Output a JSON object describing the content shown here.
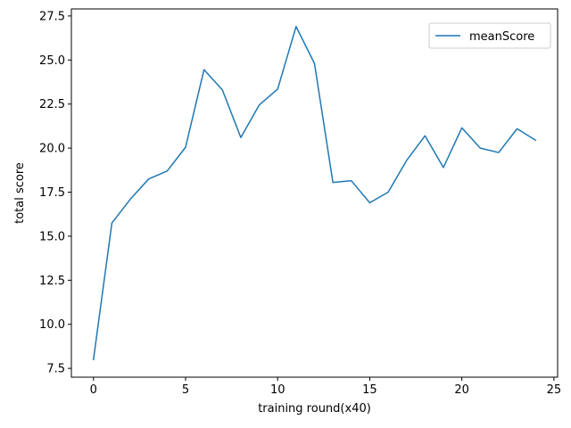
{
  "chart_data": {
    "type": "line",
    "title": "",
    "xlabel": "training round(x40)",
    "ylabel": "total score",
    "xlim": [
      -1.2,
      25.2
    ],
    "ylim": [
      7.0,
      27.9
    ],
    "xticks": [
      0,
      5,
      10,
      15,
      20,
      25
    ],
    "yticks": [
      7.5,
      10.0,
      12.5,
      15.0,
      17.5,
      20.0,
      22.5,
      25.0,
      27.5
    ],
    "xtick_labels": [
      "0",
      "5",
      "10",
      "15",
      "20",
      "25"
    ],
    "ytick_labels": [
      "7.5",
      "10.0",
      "12.5",
      "15.0",
      "17.5",
      "20.0",
      "22.5",
      "25.0",
      "27.5"
    ],
    "grid": false,
    "legend": {
      "placement": "top-right",
      "entries": [
        "meanScore"
      ]
    },
    "series": [
      {
        "name": "meanScore",
        "color": "#1f77b4",
        "x": [
          0,
          1,
          2,
          3,
          4,
          5,
          6,
          7,
          8,
          9,
          10,
          11,
          12,
          13,
          14,
          15,
          16,
          17,
          18,
          19,
          20,
          21,
          22,
          23,
          24
        ],
        "y": [
          8.0,
          15.75,
          17.1,
          18.25,
          18.7,
          20.05,
          24.45,
          23.3,
          20.6,
          22.45,
          23.35,
          26.9,
          24.8,
          18.05,
          18.15,
          16.9,
          17.5,
          19.3,
          20.7,
          18.9,
          21.15,
          20.0,
          19.75,
          21.1,
          20.45
        ]
      }
    ]
  }
}
